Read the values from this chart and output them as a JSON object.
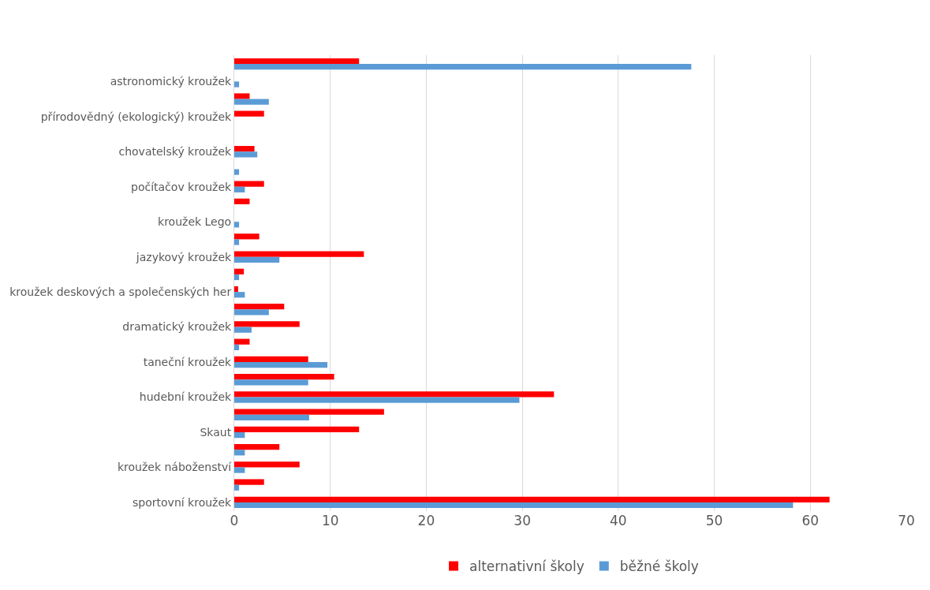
{
  "chart_data": {
    "type": "bar",
    "orientation": "horizontal",
    "categories": [
      null,
      "astronomický kroužek",
      null,
      "přírodovědný (ekologický) kroužek",
      null,
      "chovatelský kroužek",
      null,
      "počítačov kroužek",
      null,
      "kroužek Lego",
      null,
      "jazykový kroužek",
      null,
      "kroužek deskových a společenských her",
      null,
      "dramatický kroužek",
      null,
      "taneční kroužek",
      null,
      "hudební kroužek",
      null,
      "Skaut",
      null,
      "kroužek náboženství",
      null,
      "sportovní kroužek"
    ],
    "series": [
      {
        "name": "alternativní školy",
        "color": "#ff0000",
        "values": [
          13.0,
          0,
          1.6,
          3.1,
          0,
          2.1,
          0,
          3.1,
          1.6,
          0,
          2.6,
          13.5,
          1.0,
          0.4,
          5.2,
          6.8,
          1.6,
          7.7,
          10.4,
          33.3,
          15.6,
          13.0,
          4.7,
          6.8,
          3.1,
          62.0
        ]
      },
      {
        "name": "běžné školy",
        "color": "#5b9bd5",
        "values": [
          47.6,
          0.5,
          3.6,
          0,
          0,
          2.4,
          0.5,
          1.1,
          0,
          0.5,
          0.5,
          4.7,
          0.5,
          1.1,
          3.6,
          1.8,
          0.5,
          9.7,
          7.7,
          29.7,
          7.8,
          1.1,
          1.1,
          1.1,
          0.5,
          58.2
        ]
      }
    ],
    "xlim": [
      0,
      70
    ],
    "xticks": [
      0,
      10,
      20,
      30,
      40,
      50,
      60,
      70
    ],
    "grid": "x",
    "legend": "bottom"
  }
}
